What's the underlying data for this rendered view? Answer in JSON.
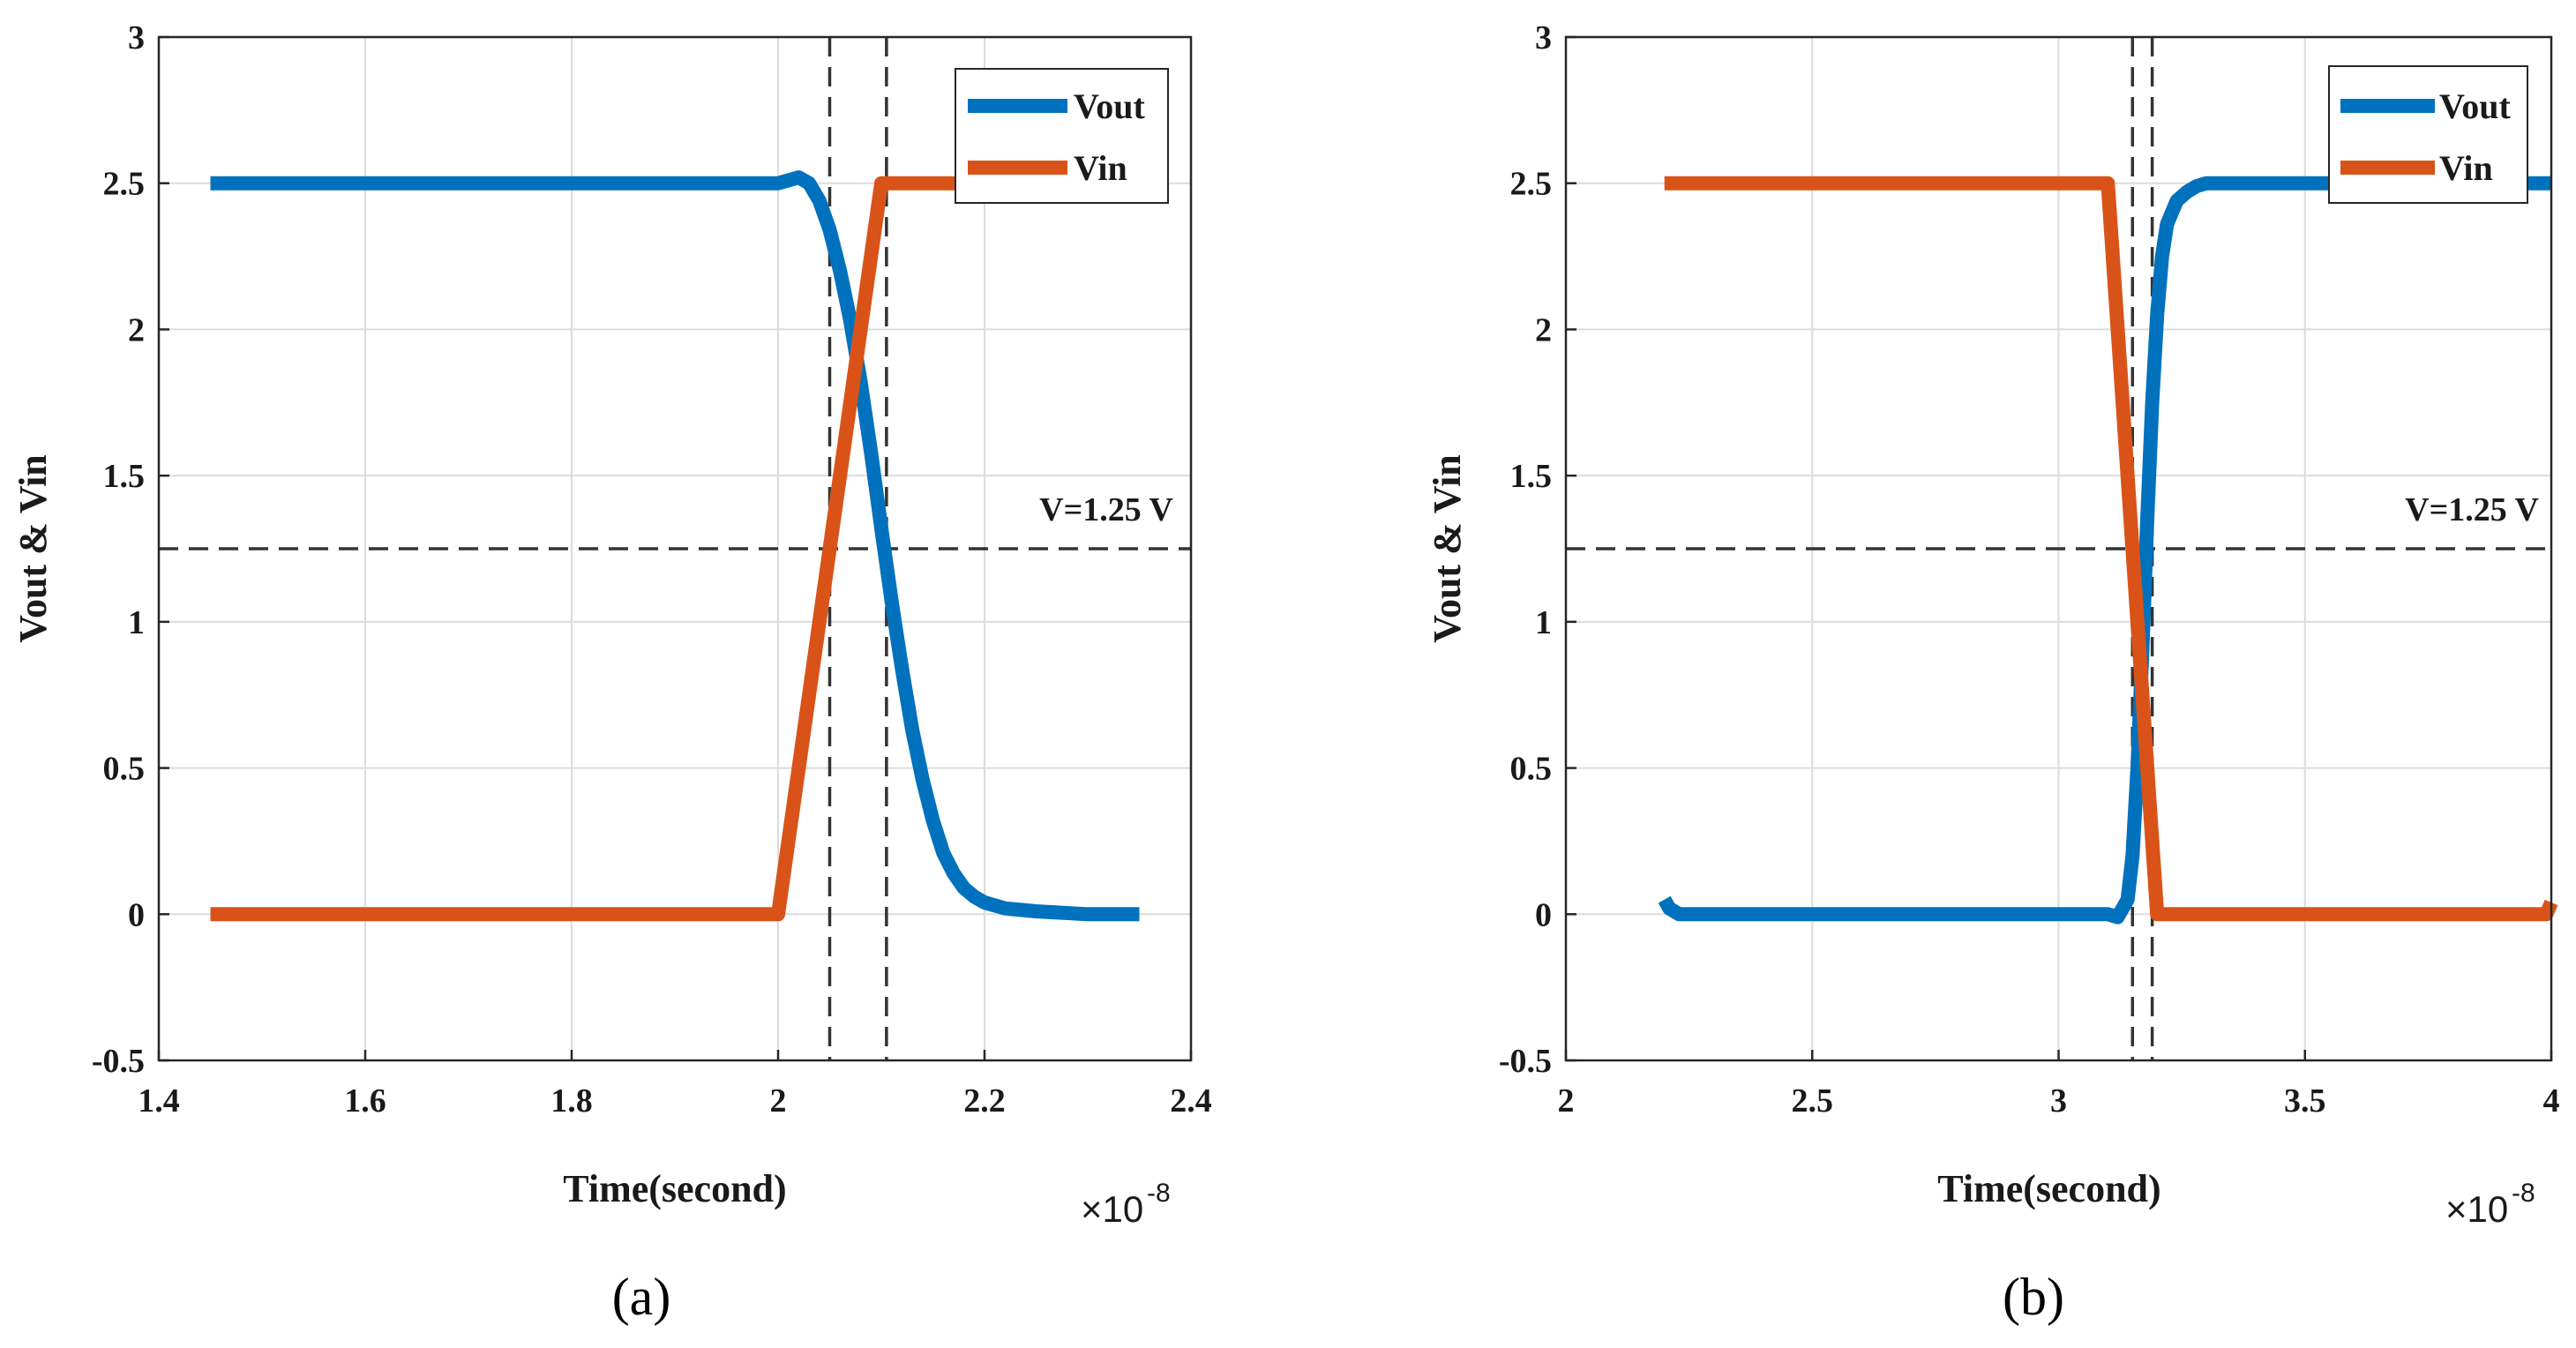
{
  "chart_data": [
    {
      "id": "a",
      "type": "line",
      "caption": "(a)",
      "xlabel": "Time(second)",
      "ylabel": "Vout & Vin",
      "xlim": [
        1.4,
        2.4
      ],
      "ylim": [
        -0.5,
        3
      ],
      "xticks": [
        1.4,
        1.6,
        1.8,
        2,
        2.2,
        2.4
      ],
      "xtick_labels": [
        "1.4",
        "1.6",
        "1.8",
        "2",
        "2.2",
        "2.4"
      ],
      "yticks": [
        -0.5,
        0,
        0.5,
        1,
        1.5,
        2,
        2.5,
        3
      ],
      "ytick_labels": [
        "-0.5",
        "0",
        "0.5",
        "1",
        "1.5",
        "2",
        "2.5",
        "3"
      ],
      "x_multiplier": "×10",
      "x_multiplier_exp": "-8",
      "grid": true,
      "legend_position": "top-right",
      "annotation": "V=1.25 V",
      "hline": 1.25,
      "vlines": [
        2.05,
        2.105
      ],
      "series": [
        {
          "name": "Vout",
          "color": "#0072BD",
          "x": [
            1.45,
            1.6,
            1.8,
            2.0,
            2.01,
            2.02,
            2.03,
            2.04,
            2.05,
            2.06,
            2.07,
            2.08,
            2.09,
            2.1,
            2.11,
            2.12,
            2.13,
            2.14,
            2.15,
            2.16,
            2.17,
            2.18,
            2.19,
            2.2,
            2.22,
            2.25,
            2.3,
            2.35
          ],
          "values": [
            2.5,
            2.5,
            2.5,
            2.5,
            2.51,
            2.52,
            2.5,
            2.44,
            2.34,
            2.2,
            2.03,
            1.82,
            1.58,
            1.32,
            1.07,
            0.84,
            0.63,
            0.46,
            0.32,
            0.21,
            0.14,
            0.09,
            0.06,
            0.04,
            0.02,
            0.01,
            0.0,
            0.0
          ]
        },
        {
          "name": "Vin",
          "color": "#D95319",
          "x": [
            1.45,
            2.0,
            2.1,
            2.35
          ],
          "values": [
            0,
            0,
            2.5,
            2.5
          ]
        }
      ]
    },
    {
      "id": "b",
      "type": "line",
      "caption": "(b)",
      "xlabel": "Time(second)",
      "ylabel": "Vout & Vin",
      "xlim": [
        2,
        4
      ],
      "ylim": [
        -0.5,
        3
      ],
      "xticks": [
        2,
        2.5,
        3,
        3.5,
        4
      ],
      "xtick_labels": [
        "2",
        "2.5",
        "3",
        "3.5",
        "4"
      ],
      "yticks": [
        -0.5,
        0,
        0.5,
        1,
        1.5,
        2,
        2.5,
        3
      ],
      "ytick_labels": [
        "-0.5",
        "0",
        "0.5",
        "1",
        "1.5",
        "2",
        "2.5",
        "3"
      ],
      "x_multiplier": "×10",
      "x_multiplier_exp": "-8",
      "grid": true,
      "legend_position": "top-right",
      "annotation": "V=1.25 V",
      "hline": 1.25,
      "vlines": [
        3.15,
        3.19
      ],
      "series": [
        {
          "name": "Vout",
          "color": "#0072BD",
          "x": [
            2.2,
            2.21,
            2.23,
            2.26,
            2.5,
            3.0,
            3.1,
            3.12,
            3.14,
            3.15,
            3.16,
            3.17,
            3.18,
            3.19,
            3.2,
            3.21,
            3.22,
            3.24,
            3.26,
            3.28,
            3.3,
            3.35,
            3.5,
            4.0
          ],
          "values": [
            0.05,
            0.02,
            0.0,
            0.0,
            0.0,
            0.0,
            0.0,
            -0.01,
            0.05,
            0.2,
            0.5,
            0.9,
            1.35,
            1.75,
            2.05,
            2.25,
            2.36,
            2.44,
            2.47,
            2.49,
            2.5,
            2.5,
            2.5,
            2.5
          ]
        },
        {
          "name": "Vin",
          "color": "#D95319",
          "x": [
            2.2,
            3.1,
            3.2,
            3.99,
            4.0
          ],
          "values": [
            2.5,
            2.5,
            0,
            0,
            0.04
          ]
        }
      ]
    }
  ]
}
